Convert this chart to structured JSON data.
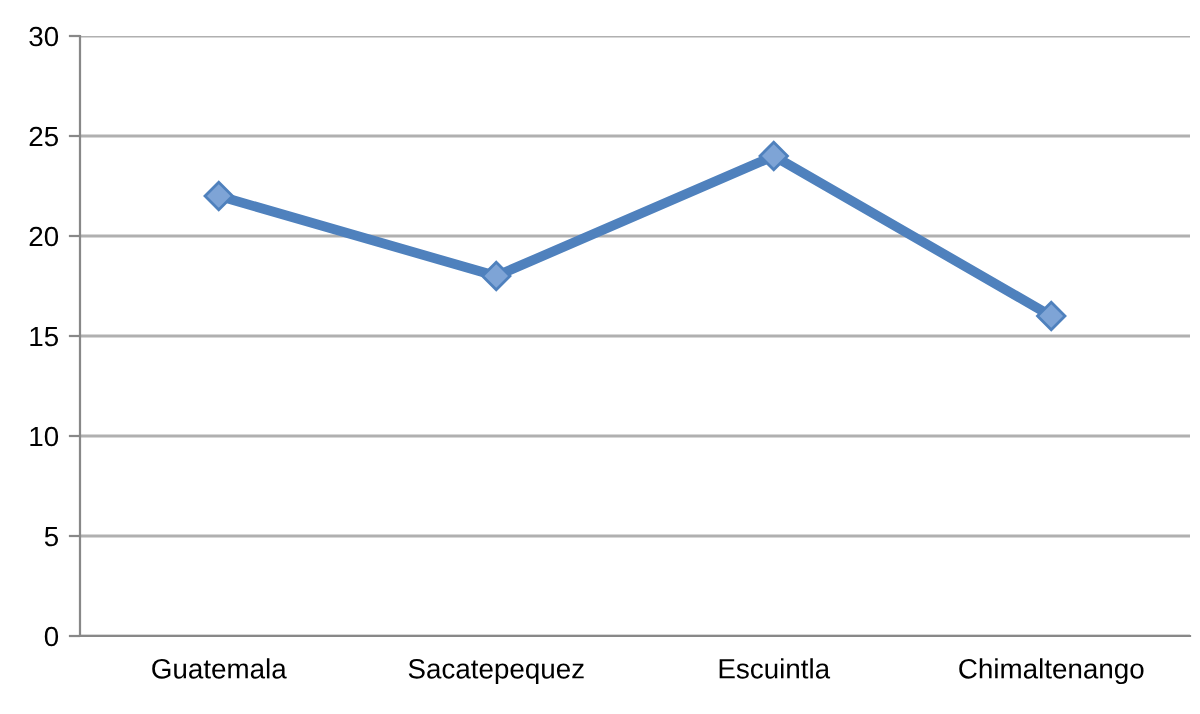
{
  "chart_data": {
    "type": "line",
    "categories": [
      "Guatemala",
      "Sacatepequez",
      "Escuintla",
      "Chimaltenango"
    ],
    "series": [
      {
        "color": "#4f81bd",
        "values": [
          22,
          18,
          24,
          16
        ]
      }
    ],
    "ylim": [
      0,
      30
    ],
    "yticks": [
      0,
      5,
      10,
      15,
      20,
      25,
      30
    ],
    "grid": "y",
    "marker": "diamond",
    "line_style": "solid",
    "legend": false
  }
}
